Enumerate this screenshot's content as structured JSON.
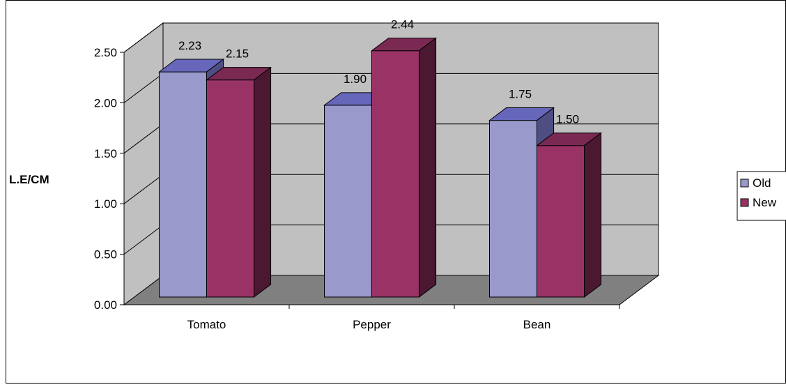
{
  "chart_data": {
    "type": "bar",
    "categories": [
      "Tomato",
      "Pepper",
      "Bean"
    ],
    "series": [
      {
        "name": "Old",
        "values": [
          2.23,
          1.9,
          1.75
        ]
      },
      {
        "name": "New",
        "values": [
          2.15,
          2.44,
          1.5
        ]
      }
    ],
    "value_labels": [
      [
        "2.23",
        "1.90",
        "1.75"
      ],
      [
        "2.15",
        "2.44",
        "1.50"
      ]
    ],
    "ylabel": "L.E/CM",
    "xlabel": "",
    "ylim": [
      0,
      2.5
    ],
    "yticks": [
      "0.00",
      "0.50",
      "1.00",
      "1.50",
      "2.00",
      "2.50"
    ],
    "grid": true,
    "style": "3d-clustered-column",
    "legend_position": "right",
    "colors": {
      "series_front": [
        "#9999CC",
        "#993366"
      ],
      "series_top": [
        "#6666BB",
        "#7A2952"
      ],
      "series_side": [
        "#4E4E83",
        "#4A1830"
      ],
      "wall": "#C0C0C0",
      "floor": "#808080",
      "grid": "#000000"
    }
  }
}
